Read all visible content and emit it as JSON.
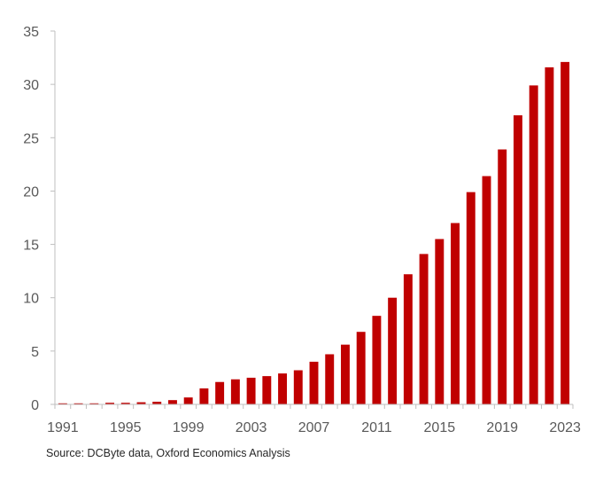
{
  "chart_data": {
    "type": "bar",
    "title": "",
    "xlabel": "",
    "ylabel": "",
    "ylim": [
      0,
      35
    ],
    "yticks": [
      0,
      5,
      10,
      15,
      20,
      25,
      30,
      35
    ],
    "x_tick_labels": [
      "1991",
      "1995",
      "1999",
      "2003",
      "2007",
      "2011",
      "2015",
      "2019",
      "2023"
    ],
    "grid": false,
    "bar_color": "#c00000",
    "categories": [
      "1991",
      "1992",
      "1993",
      "1994",
      "1995",
      "1996",
      "1997",
      "1998",
      "1999",
      "2000",
      "2001",
      "2002",
      "2003",
      "2004",
      "2005",
      "2006",
      "2007",
      "2008",
      "2009",
      "2010",
      "2011",
      "2012",
      "2013",
      "2014",
      "2015",
      "2016",
      "2017",
      "2018",
      "2019",
      "2020",
      "2021",
      "2022",
      "2023"
    ],
    "values": [
      0.1,
      0.1,
      0.1,
      0.15,
      0.15,
      0.2,
      0.25,
      0.4,
      0.65,
      1.5,
      2.1,
      2.35,
      2.5,
      2.65,
      2.9,
      3.2,
      4.0,
      4.7,
      5.6,
      6.8,
      8.3,
      10.0,
      12.2,
      14.1,
      15.5,
      17.0,
      19.9,
      21.4,
      23.9,
      27.1,
      29.9,
      31.6,
      32.1
    ]
  },
  "footer": {
    "source": "Source: DCByte data, Oxford Economics Analysis"
  }
}
